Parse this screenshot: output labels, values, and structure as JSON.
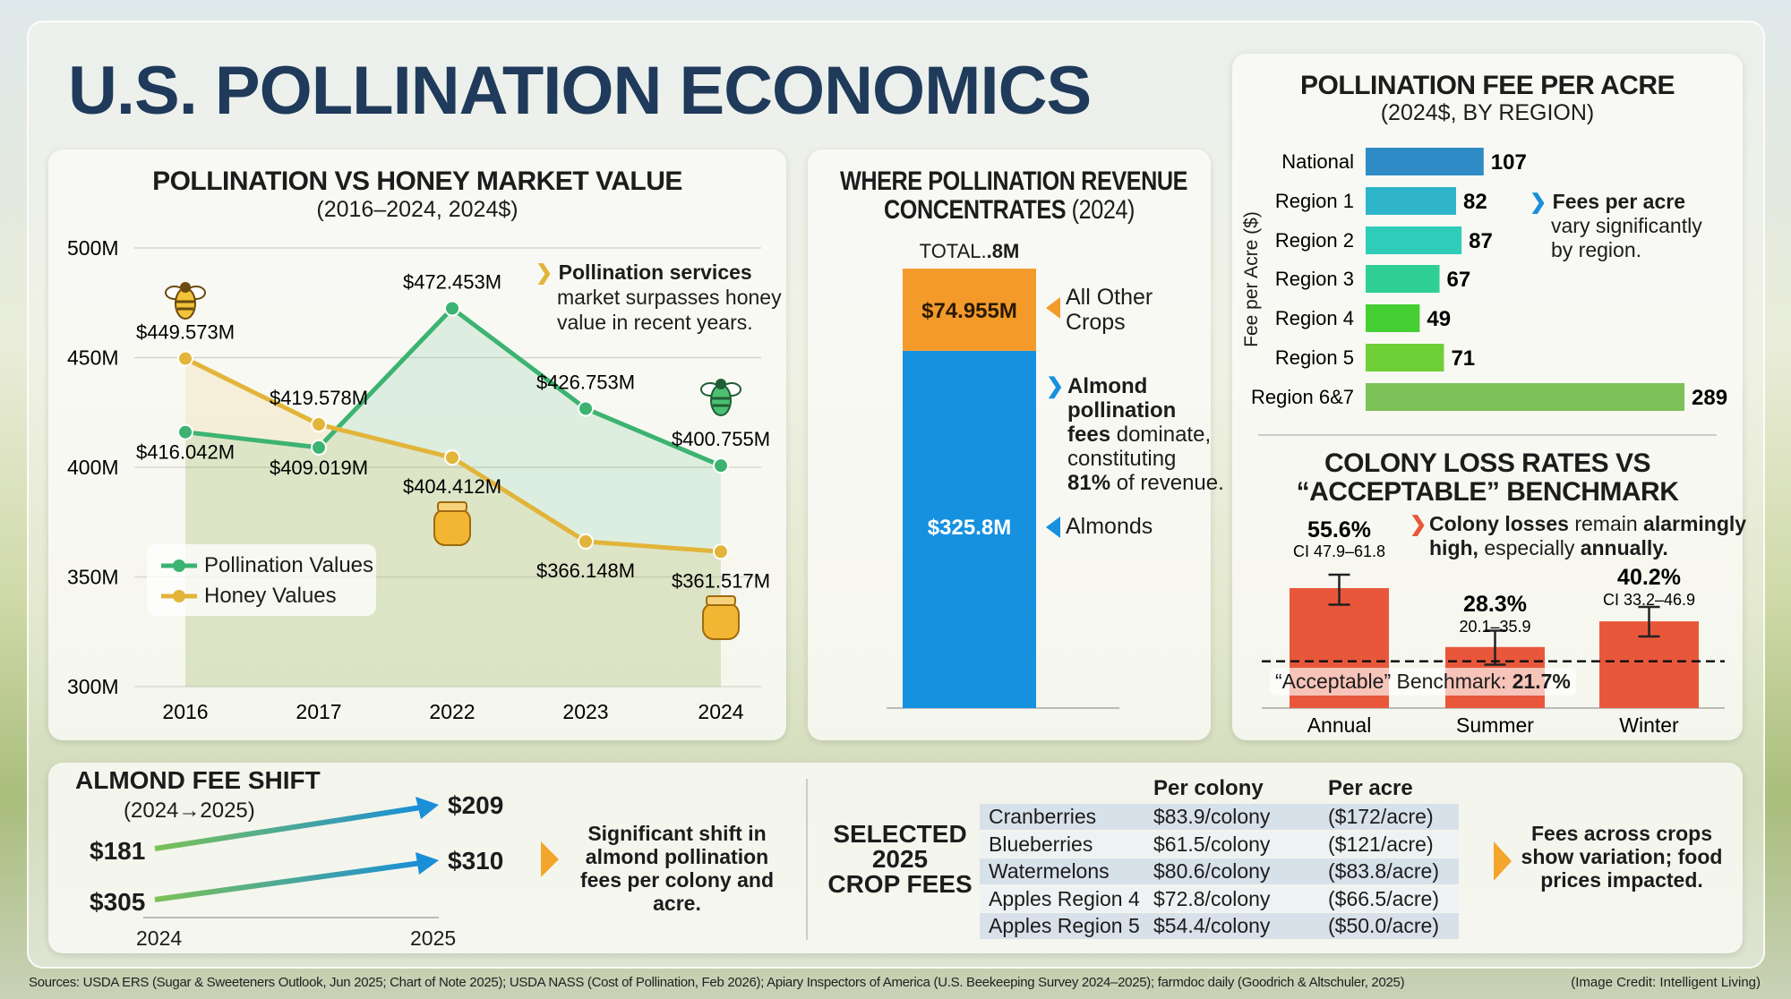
{
  "title": "U.S. POLLINATION ECONOMICS",
  "colors": {
    "pollination": "#3cb371",
    "honey": "#e2b43a",
    "almonds": "#1591e0",
    "other": "#f39a2b",
    "loss": "#e9573a",
    "region_start": "#1a8fd8",
    "region_end": "#7cc157",
    "navy": "#1f3a5a"
  },
  "chart_data": [
    {
      "type": "line",
      "title": "POLLINATION VS HONEY MARKET VALUE",
      "subtitle": "(2016–2024, 2024$)",
      "categories": [
        "2016",
        "2017",
        "2022",
        "2023",
        "2024"
      ],
      "yticks": [
        "500M",
        "450M",
        "400M",
        "350M",
        "300M"
      ],
      "ylim": [
        300,
        500
      ],
      "grid": true,
      "legend": "bottom-left",
      "series": [
        {
          "name": "Pollination Values",
          "values": [
            416.042,
            409.019,
            472.453,
            426.753,
            400.755
          ],
          "labels": [
            "$416.042M",
            "$409.019M",
            "$472.453M",
            "$426.753M",
            "$400.755M"
          ]
        },
        {
          "name": "Honey Values",
          "values": [
            449.573,
            419.578,
            404.412,
            366.148,
            361.517
          ],
          "labels": [
            "$449.573M",
            "$419.578M",
            "$404.412M",
            "$366.148M",
            "$361.517M"
          ]
        }
      ],
      "annotation": {
        "bold": "Pollination services",
        "text": "market surpasses honey value in recent years."
      },
      "icons": [
        "bee-icon",
        "honey-jar-icon"
      ]
    },
    {
      "type": "bar",
      "stacked": true,
      "title": "WHERE POLLINATION REVENUE",
      "title2": "CONCENTRATES",
      "title_year": "(2024)",
      "total_label": "TOTAL.",
      "total_value": ".8M",
      "segments": [
        {
          "name": "Almonds",
          "value": 325.8,
          "label": "$325.8M"
        },
        {
          "name_line1": "All Other",
          "name_line2": "Crops",
          "value": 74.955,
          "label": "$74.955M"
        }
      ],
      "annotation": {
        "b1": "Almond",
        "b2": "pollination",
        "b3": "fees",
        "t1": " dominate,",
        "t2": "constituting",
        "b4": "81%",
        "t3": " of revenue."
      }
    },
    {
      "type": "bar",
      "orientation": "horizontal",
      "title": "POLLINATION FEE PER ACRE",
      "subtitle": "(2024$, BY REGION)",
      "ylabel": "Fee per Acre ($)",
      "categories": [
        "National",
        "Region 1",
        "Region 2",
        "Region 3",
        "Region 4",
        "Region 5",
        "Region 6&7"
      ],
      "values": [
        107,
        82,
        87,
        67,
        49,
        71,
        289
      ],
      "annotation": {
        "bold": "Fees per acre",
        "text1": "vary significantly",
        "text2": "by region."
      }
    },
    {
      "type": "bar",
      "title": "COLONY LOSS RATES VS",
      "title2": "“ACCEPTABLE” BENCHMARK",
      "categories": [
        "Annual",
        "Summer",
        "Winter"
      ],
      "values": [
        55.6,
        28.3,
        40.2
      ],
      "value_labels": [
        "55.6%",
        "28.3%",
        "40.2%"
      ],
      "ci": [
        [
          47.9,
          61.8
        ],
        [
          20.1,
          35.9
        ],
        [
          33.2,
          46.9
        ]
      ],
      "ci_labels": [
        "CI 47.9–61.8",
        "20.1–35.9",
        "CI 33.2–46.9"
      ],
      "benchmark": 21.7,
      "benchmark_label": "“Acceptable” Benchmark: ",
      "benchmark_value": "21.7%",
      "annotation": {
        "b1": "Colony losses",
        "t1": " remain ",
        "b2": "alarmingly",
        "b3": "high,",
        "t2": " especially ",
        "b4": "annually."
      }
    }
  ],
  "almond_shift": {
    "title": "ALMOND FEE SHIFT",
    "subtitle": "(2024→2025)",
    "years": [
      "2024",
      "2025"
    ],
    "per_colony": {
      "from": "$181",
      "to": "$209"
    },
    "per_acre": {
      "from": "$305",
      "to": "$310"
    },
    "note": "Significant shift in almond pollination fees per colony and acre."
  },
  "crop_fees": {
    "title1": "SELECTED",
    "title2": "2025",
    "title3": "CROP FEES",
    "headers": [
      "Per colony",
      "Per acre"
    ],
    "rows": [
      [
        "Cranberries",
        "$83.9/colony",
        "($172/acre)"
      ],
      [
        "Blueberries",
        "$61.5/colony",
        "($121/acre)"
      ],
      [
        "Watermelons",
        "$80.6/colony",
        "($83.8/acre)"
      ],
      [
        "Apples Region 4",
        "$72.8/colony",
        "($66.5/acre)"
      ],
      [
        "Apples Region 5",
        "$54.4/colony",
        "($50.0/acre)"
      ]
    ],
    "note": "Fees across crops show variation; food prices impacted."
  },
  "footer": {
    "sources": "Sources: USDA ERS (Sugar & Sweeteners Outlook, Jun 2025; Chart of Note 2025); USDA NASS (Cost of Pollination, Feb 2026); Apiary Inspectors of America (U.S. Beekeeping Survey 2024–2025); farmdoc daily (Goodrich & Altschuler, 2025)",
    "credit": "(Image Credit: Intelligent Living)"
  }
}
